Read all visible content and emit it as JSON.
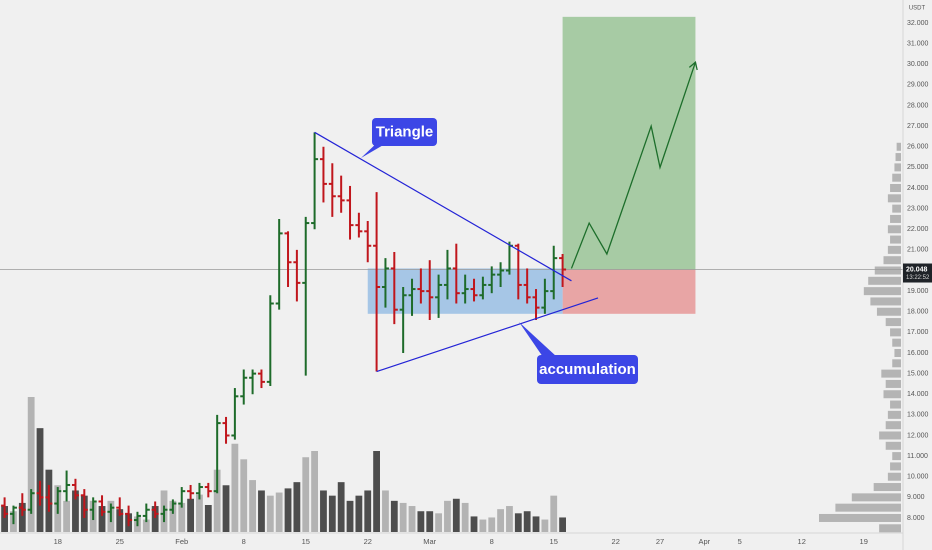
{
  "chart_data": {
    "type": "ohlc",
    "unit": "USDT",
    "x": [
      "Jan 12",
      "Jan 13",
      "Jan 14",
      "Jan 15",
      "Jan 16",
      "Jan 17",
      "Jan 18",
      "Jan 19",
      "Jan 20",
      "Jan 21",
      "Jan 22",
      "Jan 23",
      "Jan 24",
      "Jan 25",
      "Jan 26",
      "Jan 27",
      "Jan 28",
      "Jan 29",
      "Jan 30",
      "Jan 31",
      "Feb 1",
      "Feb 2",
      "Feb 3",
      "Feb 4",
      "Feb 5",
      "Feb 6",
      "Feb 7",
      "Feb 8",
      "Feb 9",
      "Feb 10",
      "Feb 11",
      "Feb 12",
      "Feb 13",
      "Feb 14",
      "Feb 15",
      "Feb 16",
      "Feb 17",
      "Feb 18",
      "Feb 19",
      "Feb 20",
      "Feb 21",
      "Feb 22",
      "Feb 23",
      "Feb 24",
      "Feb 25",
      "Feb 26",
      "Feb 27",
      "Feb 28",
      "Mar 1",
      "Mar 2",
      "Mar 3",
      "Mar 4",
      "Mar 5",
      "Mar 6",
      "Mar 7",
      "Mar 8",
      "Mar 9",
      "Mar 10",
      "Mar 11",
      "Mar 12",
      "Mar 13",
      "Mar 14",
      "Mar 15",
      "Mar 16"
    ],
    "open": [
      8.6,
      8.2,
      8.5,
      8.4,
      9.2,
      9.0,
      8.7,
      9.3,
      9.6,
      9.1,
      8.4,
      8.8,
      8.3,
      8.5,
      8.2,
      7.9,
      8.1,
      8.4,
      8.2,
      8.4,
      8.7,
      9.3,
      9.2,
      9.5,
      9.3,
      12.6,
      12.0,
      13.9,
      14.8,
      15.0,
      14.6,
      18.4,
      21.8,
      20.4,
      19.4,
      22.3,
      25.4,
      24.2,
      23.6,
      23.4,
      22.2,
      21.9,
      21.2,
      19.2,
      20.1,
      18.1,
      18.8,
      19.1,
      19.0,
      18.7,
      19.3,
      20.1,
      18.9,
      19.1,
      18.8,
      19.3,
      19.8,
      20.0,
      21.2,
      19.3,
      18.7,
      18.2,
      19.0,
      20.6
    ],
    "high": [
      9.0,
      8.6,
      9.2,
      9.4,
      9.8,
      9.6,
      9.5,
      10.3,
      9.9,
      9.4,
      9.0,
      9.1,
      8.7,
      9.0,
      8.6,
      8.3,
      8.7,
      8.8,
      8.6,
      8.9,
      9.5,
      9.6,
      9.7,
      9.7,
      13.0,
      12.9,
      14.3,
      15.2,
      15.2,
      15.2,
      18.8,
      22.5,
      21.9,
      21.0,
      22.6,
      26.7,
      26.0,
      25.2,
      24.6,
      24.1,
      22.8,
      22.4,
      23.8,
      20.6,
      20.9,
      19.2,
      19.6,
      20.1,
      20.5,
      19.8,
      21.0,
      21.3,
      19.8,
      19.6,
      19.7,
      20.2,
      20.4,
      21.4,
      21.3,
      20.1,
      19.1,
      19.6,
      21.2,
      20.8
    ],
    "low": [
      8.0,
      7.7,
      8.1,
      8.2,
      8.6,
      8.3,
      8.2,
      8.8,
      8.9,
      8.0,
      7.9,
      8.1,
      7.8,
      8.1,
      7.6,
      7.6,
      7.8,
      8.0,
      7.8,
      8.2,
      8.5,
      8.9,
      8.9,
      9.0,
      9.2,
      11.6,
      11.8,
      13.5,
      14.0,
      14.3,
      14.4,
      18.1,
      19.2,
      18.5,
      14.9,
      22.0,
      23.3,
      22.6,
      22.8,
      21.5,
      21.6,
      20.4,
      15.1,
      18.2,
      17.4,
      16.0,
      17.8,
      18.4,
      17.6,
      17.7,
      18.6,
      18.4,
      18.4,
      18.5,
      18.6,
      18.9,
      19.2,
      19.8,
      18.6,
      18.4,
      17.6,
      17.9,
      18.6,
      19.2
    ],
    "close": [
      8.2,
      8.5,
      8.4,
      9.2,
      9.0,
      8.7,
      9.3,
      9.6,
      9.1,
      8.4,
      8.8,
      8.3,
      8.5,
      8.2,
      7.9,
      8.1,
      8.4,
      8.2,
      8.4,
      8.7,
      9.3,
      9.2,
      9.5,
      9.3,
      12.6,
      12.0,
      13.9,
      14.8,
      15.0,
      14.6,
      18.4,
      21.8,
      20.4,
      19.4,
      22.3,
      25.4,
      24.2,
      23.6,
      23.4,
      22.2,
      21.9,
      21.2,
      19.2,
      20.1,
      18.1,
      18.8,
      19.1,
      19.0,
      18.7,
      19.3,
      20.1,
      18.9,
      19.1,
      18.8,
      19.3,
      19.8,
      20.0,
      21.2,
      19.3,
      18.7,
      18.2,
      19.0,
      20.6,
      20.048
    ],
    "volume": [
      25,
      20,
      28,
      130,
      100,
      60,
      45,
      30,
      40,
      35,
      30,
      25,
      30,
      22,
      18,
      15,
      12,
      25,
      40,
      30,
      28,
      32,
      36,
      26,
      60,
      45,
      85,
      70,
      50,
      40,
      35,
      38,
      42,
      48,
      72,
      78,
      40,
      35,
      48,
      30,
      35,
      40,
      78,
      40,
      30,
      28,
      25,
      20,
      20,
      18,
      30,
      32,
      28,
      15,
      12,
      14,
      22,
      25,
      18,
      20,
      15,
      12,
      35,
      14
    ],
    "up_color": "#1e6b2a",
    "down_color": "#c0161c",
    "volume_up_color": "#b3b3b3",
    "volume_down_color": "#4d4d4d",
    "xlim": [
      "Jan 12",
      "Apr 22"
    ],
    "ylim": [
      7,
      33
    ],
    "xticks": [
      {
        "value": "Jan 18",
        "label": "18"
      },
      {
        "value": "Jan 25",
        "label": "25"
      },
      {
        "value": "Feb 1",
        "label": "Feb"
      },
      {
        "value": "Feb 8",
        "label": "8"
      },
      {
        "value": "Feb 15",
        "label": "15"
      },
      {
        "value": "Feb 22",
        "label": "22"
      },
      {
        "value": "Mar 1",
        "label": "Mar"
      },
      {
        "value": "Mar 8",
        "label": "8"
      },
      {
        "value": "Mar 15",
        "label": "15"
      },
      {
        "value": "Mar 22",
        "label": "22"
      },
      {
        "value": "Mar 27",
        "label": "27"
      },
      {
        "value": "Apr 1",
        "label": "Apr"
      },
      {
        "value": "Apr 5",
        "label": "5"
      },
      {
        "value": "Apr 12",
        "label": "12"
      },
      {
        "value": "Apr 19",
        "label": "19"
      }
    ],
    "yticks": [
      {
        "value": 8,
        "label": "8.000"
      },
      {
        "value": 9,
        "label": "9.000"
      },
      {
        "value": 10,
        "label": "10.000"
      },
      {
        "value": 11,
        "label": "11.000"
      },
      {
        "value": 12,
        "label": "12.000"
      },
      {
        "value": 13,
        "label": "13.000"
      },
      {
        "value": 14,
        "label": "14.000"
      },
      {
        "value": 15,
        "label": "15.000"
      },
      {
        "value": 16,
        "label": "16.000"
      },
      {
        "value": 17,
        "label": "17.000"
      },
      {
        "value": 18,
        "label": "18.000"
      },
      {
        "value": 19,
        "label": "19.000"
      },
      {
        "value": 20,
        "label": "20.000"
      },
      {
        "value": 21,
        "label": "21.000"
      },
      {
        "value": 22,
        "label": "22.000"
      },
      {
        "value": 23,
        "label": "23.000"
      },
      {
        "value": 24,
        "label": "24.000"
      },
      {
        "value": 25,
        "label": "25.000"
      },
      {
        "value": 26,
        "label": "26.000"
      },
      {
        "value": 27,
        "label": "27.000"
      },
      {
        "value": 28,
        "label": "28.000"
      },
      {
        "value": 29,
        "label": "29.000"
      },
      {
        "value": 30,
        "label": "30.000"
      },
      {
        "value": 31,
        "label": "31.000"
      },
      {
        "value": 32,
        "label": "32.000"
      }
    ],
    "price_line": {
      "value": 20.048,
      "countdown": "13:22:52",
      "color": "#9a9a9a"
    },
    "volume_profile": {
      "prices": [
        7.5,
        8.0,
        8.5,
        9.0,
        9.5,
        10.0,
        10.5,
        11.0,
        11.5,
        12.0,
        12.5,
        13.0,
        13.5,
        14.0,
        14.5,
        15.0,
        15.5,
        16.0,
        16.5,
        17.0,
        17.5,
        18.0,
        18.5,
        19.0,
        19.5,
        20.0,
        20.5,
        21.0,
        21.5,
        22.0,
        22.5,
        23.0,
        23.5,
        24.0,
        24.5,
        25.0,
        25.5,
        26.0
      ],
      "values": [
        20,
        75,
        60,
        45,
        25,
        12,
        10,
        8,
        14,
        20,
        14,
        12,
        10,
        16,
        14,
        18,
        8,
        6,
        8,
        10,
        14,
        22,
        28,
        34,
        30,
        24,
        16,
        12,
        10,
        12,
        10,
        8,
        12,
        10,
        8,
        6,
        5,
        4
      ],
      "color": "#a9a9a9"
    },
    "drawings": {
      "triangle_color": "#2323d6",
      "triangle_lines": [
        {
          "x": [
            "Feb 16",
            "Mar 17"
          ],
          "y": [
            26.7,
            19.5
          ]
        },
        {
          "x": [
            "Feb 23",
            "Mar 20"
          ],
          "y": [
            15.1,
            18.67
          ]
        }
      ],
      "accumulation_box": {
        "x": [
          "Feb 22",
          "Mar 16"
        ],
        "y": [
          17.9,
          20.1
        ],
        "color": "#a6c6e6"
      },
      "target_box": {
        "x": [
          "Mar 16",
          "Mar 31"
        ],
        "y": [
          20.048,
          32.3
        ],
        "color": "#a7cba4"
      },
      "stop_box": {
        "x": [
          "Mar 16",
          "Mar 31"
        ],
        "y": [
          17.9,
          20.048
        ],
        "color": "#e8a5a5"
      },
      "projection": {
        "x": [
          "Mar 17",
          "Mar 19",
          "Mar 21",
          "Mar 26",
          "Mar 27",
          "Mar 31"
        ],
        "y": [
          20.1,
          22.3,
          20.8,
          27.0,
          25.0,
          30.1
        ],
        "color": "#1d6e2b"
      }
    },
    "annotations": [
      "Triangle",
      "accumulation"
    ],
    "annotation_color": "#3c46e6"
  }
}
